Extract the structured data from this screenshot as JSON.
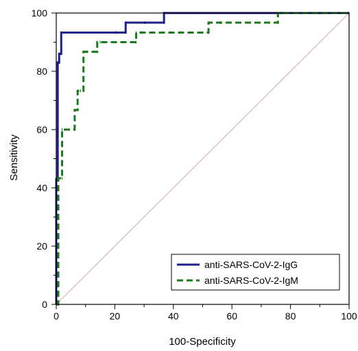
{
  "chart_data": {
    "type": "line",
    "title": "",
    "xlabel": "100-Specificity",
    "ylabel": "Sensitivity",
    "xlim": [
      0,
      100
    ],
    "ylim": [
      0,
      100
    ],
    "x_ticks": [
      "0",
      "20",
      "40",
      "60",
      "80",
      "100"
    ],
    "y_ticks": [
      "0",
      "20",
      "40",
      "60",
      "80",
      "100"
    ],
    "grid": false,
    "legend_position": "bottom-right",
    "reference_line": {
      "x": [
        0,
        100
      ],
      "y": [
        0,
        100
      ],
      "color": "#d9a6a6"
    },
    "series": [
      {
        "name": "anti-SARS-CoV-2-IgG",
        "color": "#1f1f8a",
        "dash": "solid",
        "x": [
          0,
          0,
          0.5,
          0.5,
          1.0,
          1.0,
          1.7,
          1.7,
          20.3,
          20.3,
          23.7,
          23.7,
          30.3,
          30.3,
          36.8,
          36.8,
          100
        ],
        "y": [
          0,
          43,
          43,
          83,
          83,
          86,
          86,
          93.3,
          93.3,
          93.3,
          93.3,
          96.7,
          96.7,
          96.7,
          96.7,
          100,
          100
        ]
      },
      {
        "name": "anti-SARS-CoV-2-IgM",
        "color": "#1a7a1a",
        "dash": "dashed",
        "x": [
          0,
          0.7,
          0.7,
          2.0,
          2.0,
          6.3,
          6.3,
          7.3,
          7.3,
          8.3,
          8.3,
          9.3,
          9.3,
          10.7,
          10.7,
          14.0,
          14.0,
          15.0,
          15.0,
          27.3,
          27.3,
          29.0,
          29.0,
          52.0,
          52.0,
          56.0,
          56.0,
          75.7,
          75.7,
          100
        ],
        "y": [
          0,
          0,
          43.3,
          43.3,
          60,
          60,
          66.7,
          66.7,
          73.3,
          73.3,
          73.3,
          73.3,
          86.7,
          86.7,
          86.7,
          86.7,
          90,
          90,
          90,
          90,
          93.3,
          93.3,
          93.3,
          93.3,
          96.7,
          96.7,
          96.7,
          96.7,
          100,
          100
        ]
      }
    ]
  }
}
